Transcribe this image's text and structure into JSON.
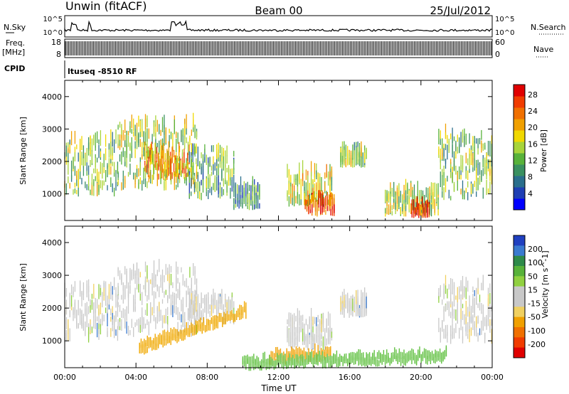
{
  "header": {
    "title": "Unwin (fitACF)",
    "beam": "Beam 00",
    "date": "25/Jul/2012"
  },
  "side_labels": {
    "nsky": "N.Sky",
    "freq": "Freq.",
    "mhz": "[MHz]",
    "cpid": "CPID",
    "nsearch": "N.Search",
    "nave": "Nave",
    "cpid_value": "ltuseq -8510 RF"
  },
  "noise_axis": {
    "left_ticks": [
      "10^5",
      "10^0"
    ],
    "right_ticks": [
      "10^5",
      "10^0"
    ]
  },
  "freq_axis": {
    "left_ticks": [
      "18",
      "8"
    ],
    "right_ticks": [
      "60",
      "0"
    ]
  },
  "chart_data": [
    {
      "type": "heatmap",
      "name": "power",
      "ylabel": "Slant Range [km]",
      "ylim": [
        180,
        4500
      ],
      "y_ticks": [
        1000,
        2000,
        3000,
        4000
      ],
      "xlim_hours": [
        0,
        24
      ],
      "colorbar": {
        "label": "Power [dB]",
        "ticks": [
          "4",
          "8",
          "12",
          "16",
          "20",
          "24",
          "28"
        ],
        "colors": [
          "#0000ff",
          "#1f3fb4",
          "#2a6e8c",
          "#3a9060",
          "#58b23a",
          "#a8d43a",
          "#f0d800",
          "#f0a000",
          "#f07000",
          "#f03c00",
          "#e00000"
        ]
      },
      "regions": [
        {
          "t0": 0.0,
          "t1": 3.0,
          "r0": 900,
          "r1": 2600,
          "level": 0.45
        },
        {
          "t0": 3.0,
          "t1": 7.5,
          "r0": 1100,
          "r1": 3100,
          "level": 0.5
        },
        {
          "t0": 4.5,
          "t1": 7.0,
          "r0": 1400,
          "r1": 2200,
          "level": 0.7
        },
        {
          "t0": 7.0,
          "t1": 9.5,
          "r0": 800,
          "r1": 2300,
          "level": 0.35
        },
        {
          "t0": 9.5,
          "t1": 11.0,
          "r0": 500,
          "r1": 1100,
          "level": 0.3
        },
        {
          "t0": 12.5,
          "t1": 15.0,
          "r0": 600,
          "r1": 1600,
          "level": 0.55
        },
        {
          "t0": 13.5,
          "t1": 15.2,
          "r0": 300,
          "r1": 700,
          "level": 0.9
        },
        {
          "t0": 15.5,
          "t1": 17.0,
          "r0": 1800,
          "r1": 2200,
          "level": 0.45
        },
        {
          "t0": 18.0,
          "t1": 21.0,
          "r0": 300,
          "r1": 1000,
          "level": 0.5
        },
        {
          "t0": 19.5,
          "t1": 20.5,
          "r0": 250,
          "r1": 450,
          "level": 0.95
        },
        {
          "t0": 21.0,
          "t1": 24.0,
          "r0": 800,
          "r1": 2700,
          "level": 0.45
        }
      ]
    },
    {
      "type": "heatmap",
      "name": "velocity",
      "ylabel": "Slant Range [km]",
      "xlabel": "Time UT",
      "ylim": [
        180,
        4500
      ],
      "y_ticks": [
        1000,
        2000,
        3000,
        4000
      ],
      "x_ticks": [
        "00:00",
        "04:00",
        "08:00",
        "12:00",
        "16:00",
        "20:00",
        "00:00"
      ],
      "xlim_hours": [
        0,
        24
      ],
      "colorbar": {
        "label": "Velocity [m s^-1]",
        "ticks": [
          "200",
          "100",
          "50",
          "15",
          "-15",
          "-50",
          "-100",
          "-200"
        ],
        "colors": [
          "#2040c0",
          "#3a7ad0",
          "#2e8a4a",
          "#58b23a",
          "#90d040",
          "#c8c8c8",
          "#c8c8c8",
          "#f0d060",
          "#f0a000",
          "#f07000",
          "#f03c00",
          "#e00000"
        ]
      },
      "regions": [
        {
          "t0": 0.0,
          "t1": 3.0,
          "r0": 900,
          "r1": 2600,
          "level": 0.5
        },
        {
          "t0": 3.0,
          "t1": 7.5,
          "r0": 1100,
          "r1": 3100,
          "level": 0.5
        },
        {
          "t0": 7.0,
          "t1": 9.5,
          "r0": 1500,
          "r1": 2200,
          "level": 0.5
        },
        {
          "t0": 12.5,
          "t1": 15.0,
          "r0": 700,
          "r1": 1600,
          "level": 0.5
        },
        {
          "t0": 15.5,
          "t1": 17.0,
          "r0": 1700,
          "r1": 2200,
          "level": 0.5
        },
        {
          "t0": 21.0,
          "t1": 24.0,
          "r0": 900,
          "r1": 2600,
          "level": 0.5
        }
      ],
      "streaks": [
        {
          "t0": 4.2,
          "t1": 10.2,
          "r0": 650,
          "r1": 1800,
          "color": "#f0a800"
        },
        {
          "t0": 11.5,
          "t1": 15.0,
          "r0": 350,
          "r1": 500,
          "color": "#f0a000"
        },
        {
          "t0": 10.0,
          "t1": 21.5,
          "r0": 200,
          "r1": 400,
          "color": "#60c040"
        }
      ]
    }
  ]
}
